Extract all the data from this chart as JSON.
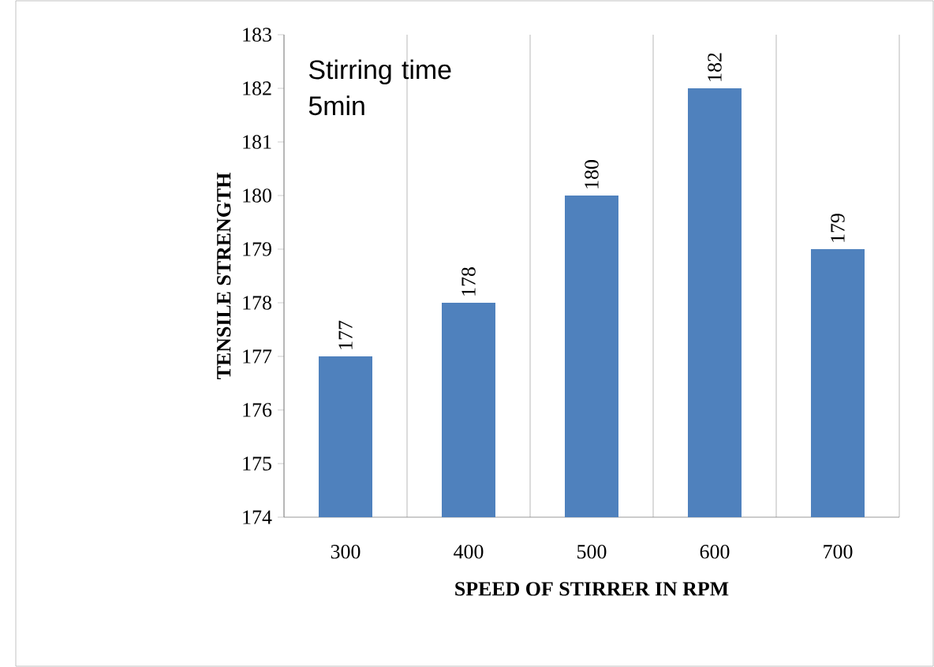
{
  "chart_data": {
    "type": "bar",
    "xlabel": "SPEED OF STIRRER IN RPM",
    "ylabel": "TENSILE STRENGTH",
    "categories": [
      "300",
      "400",
      "500",
      "600",
      "700"
    ],
    "values": [
      177,
      178,
      180,
      182,
      179
    ],
    "color": "#4f81bd",
    "ylim": [
      174,
      183
    ],
    "yticks": [
      174,
      175,
      176,
      177,
      178,
      179,
      180,
      181,
      182,
      183
    ],
    "grid": "x",
    "data_labels": true,
    "annotations": [
      "Stirring time 5min"
    ]
  }
}
